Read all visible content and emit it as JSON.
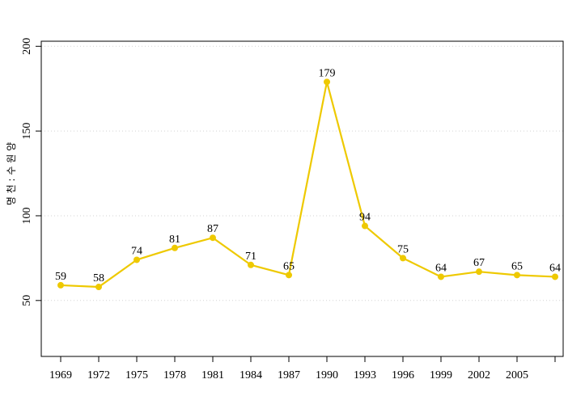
{
  "chart_data": {
    "type": "line",
    "title": "",
    "xlabel": "",
    "ylabel": "명 천 : 수 원 양",
    "x": [
      "1969",
      "1972",
      "1975",
      "1978",
      "1981",
      "1984",
      "1987",
      "1990",
      "1993",
      "1996",
      "1999",
      "2002",
      "2005",
      "2007"
    ],
    "x_tick_labels": [
      "1969",
      "1972",
      "1975",
      "1978",
      "1981",
      "1984",
      "1987",
      "1990",
      "1993",
      "1996",
      "1999",
      "2002",
      "2005"
    ],
    "series": [
      {
        "values": [
          59,
          58,
          74,
          81,
          87,
          71,
          65,
          179,
          94,
          75,
          64,
          67,
          65,
          64
        ]
      }
    ],
    "data_labels": [
      "59",
      "58",
      "74",
      "81",
      "87",
      "71",
      "65",
      "179",
      "94",
      "75",
      "64",
      "67",
      "65",
      "64"
    ],
    "y_ticks": [
      50,
      100,
      150,
      200
    ],
    "ylim": [
      17,
      203
    ],
    "grid": "horizontal dotted",
    "line_color": "#EEC900",
    "grid_color": "#d3d3d3"
  }
}
